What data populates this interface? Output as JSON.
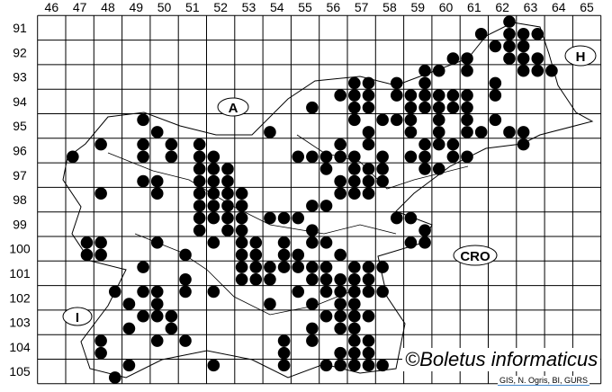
{
  "map": {
    "columns": [
      46,
      47,
      48,
      49,
      50,
      51,
      52,
      53,
      54,
      55,
      56,
      57,
      58,
      59,
      60,
      61,
      62,
      63,
      64,
      65
    ],
    "rows": [
      91,
      92,
      93,
      94,
      95,
      96,
      97,
      98,
      99,
      100,
      101,
      102,
      103,
      104,
      105
    ],
    "country_labels": {
      "austria": "A",
      "hungary": "H",
      "italy": "I",
      "croatia": "CRO"
    },
    "copyright": "©Boletus informaticus",
    "source": "GIS, N. Ogris, BI, GURS",
    "dot_color": "#000000",
    "quadrant_order": "1=NW, 2=NE, 3=SW, 4=SE",
    "records": [
      [
        91,
        62,
        2
      ],
      [
        91,
        61,
        4
      ],
      [
        91,
        62,
        4
      ],
      [
        91,
        63,
        3
      ],
      [
        91,
        63,
        4
      ],
      [
        92,
        62,
        1
      ],
      [
        92,
        62,
        2
      ],
      [
        92,
        63,
        1
      ],
      [
        92,
        60,
        4
      ],
      [
        92,
        61,
        3
      ],
      [
        92,
        62,
        4
      ],
      [
        92,
        63,
        3
      ],
      [
        92,
        63,
        4
      ],
      [
        93,
        59,
        2
      ],
      [
        93,
        60,
        1
      ],
      [
        93,
        61,
        1
      ],
      [
        93,
        63,
        1
      ],
      [
        93,
        63,
        2
      ],
      [
        93,
        64,
        1
      ],
      [
        93,
        57,
        3
      ],
      [
        93,
        57,
        4
      ],
      [
        93,
        58,
        4
      ],
      [
        93,
        59,
        4
      ],
      [
        93,
        62,
        3
      ],
      [
        94,
        56,
        2
      ],
      [
        94,
        57,
        1
      ],
      [
        94,
        57,
        2
      ],
      [
        94,
        58,
        2
      ],
      [
        94,
        59,
        1
      ],
      [
        94,
        59,
        2
      ],
      [
        94,
        60,
        1
      ],
      [
        94,
        60,
        2
      ],
      [
        94,
        61,
        1
      ],
      [
        94,
        62,
        1
      ],
      [
        94,
        55,
        4
      ],
      [
        94,
        57,
        3
      ],
      [
        94,
        57,
        4
      ],
      [
        94,
        59,
        3
      ],
      [
        94,
        59,
        4
      ],
      [
        94,
        60,
        3
      ],
      [
        94,
        60,
        4
      ],
      [
        94,
        61,
        3
      ],
      [
        95,
        49,
        2
      ],
      [
        95,
        57,
        1
      ],
      [
        95,
        58,
        1
      ],
      [
        95,
        58,
        2
      ],
      [
        95,
        59,
        1
      ],
      [
        95,
        60,
        1
      ],
      [
        95,
        61,
        1
      ],
      [
        95,
        62,
        1
      ],
      [
        95,
        50,
        3
      ],
      [
        95,
        54,
        3
      ],
      [
        95,
        57,
        4
      ],
      [
        95,
        59,
        3
      ],
      [
        95,
        60,
        3
      ],
      [
        95,
        61,
        3
      ],
      [
        95,
        61,
        4
      ],
      [
        95,
        62,
        4
      ],
      [
        95,
        63,
        3
      ],
      [
        96,
        48,
        1
      ],
      [
        96,
        49,
        2
      ],
      [
        96,
        50,
        2
      ],
      [
        96,
        51,
        2
      ],
      [
        96,
        56,
        2
      ],
      [
        96,
        57,
        2
      ],
      [
        96,
        59,
        2
      ],
      [
        96,
        60,
        1
      ],
      [
        96,
        60,
        2
      ],
      [
        96,
        63,
        1
      ],
      [
        96,
        47,
        3
      ],
      [
        96,
        49,
        4
      ],
      [
        96,
        50,
        4
      ],
      [
        96,
        51,
        4
      ],
      [
        96,
        52,
        3
      ],
      [
        96,
        55,
        3
      ],
      [
        96,
        55,
        4
      ],
      [
        96,
        56,
        3
      ],
      [
        96,
        56,
        4
      ],
      [
        96,
        57,
        3
      ],
      [
        96,
        58,
        3
      ],
      [
        96,
        59,
        3
      ],
      [
        96,
        59,
        4
      ],
      [
        96,
        60,
        4
      ],
      [
        96,
        61,
        3
      ],
      [
        97,
        51,
        2
      ],
      [
        97,
        52,
        1
      ],
      [
        97,
        52,
        2
      ],
      [
        97,
        56,
        1
      ],
      [
        97,
        57,
        1
      ],
      [
        97,
        57,
        2
      ],
      [
        97,
        58,
        1
      ],
      [
        97,
        59,
        2
      ],
      [
        97,
        60,
        1
      ],
      [
        97,
        49,
        4
      ],
      [
        97,
        50,
        3
      ],
      [
        97,
        51,
        4
      ],
      [
        97,
        52,
        3
      ],
      [
        97,
        52,
        4
      ],
      [
        97,
        56,
        4
      ],
      [
        97,
        57,
        3
      ],
      [
        97,
        57,
        4
      ],
      [
        97,
        58,
        3
      ],
      [
        98,
        48,
        1
      ],
      [
        98,
        50,
        1
      ],
      [
        98,
        51,
        2
      ],
      [
        98,
        52,
        1
      ],
      [
        98,
        52,
        2
      ],
      [
        98,
        53,
        1
      ],
      [
        98,
        56,
        2
      ],
      [
        98,
        57,
        1
      ],
      [
        98,
        57,
        2
      ],
      [
        98,
        51,
        4
      ],
      [
        98,
        52,
        3
      ],
      [
        98,
        52,
        4
      ],
      [
        98,
        53,
        3
      ],
      [
        98,
        55,
        4
      ],
      [
        98,
        56,
        3
      ],
      [
        99,
        51,
        2
      ],
      [
        99,
        52,
        1
      ],
      [
        99,
        52,
        2
      ],
      [
        99,
        53,
        1
      ],
      [
        99,
        54,
        1
      ],
      [
        99,
        54,
        2
      ],
      [
        99,
        55,
        1
      ],
      [
        99,
        58,
        2
      ],
      [
        99,
        59,
        1
      ],
      [
        99,
        51,
        4
      ],
      [
        99,
        52,
        4
      ],
      [
        99,
        53,
        3
      ],
      [
        99,
        55,
        4
      ],
      [
        99,
        59,
        4
      ],
      [
        100,
        47,
        2
      ],
      [
        100,
        48,
        1
      ],
      [
        100,
        50,
        1
      ],
      [
        100,
        52,
        1
      ],
      [
        100,
        53,
        1
      ],
      [
        100,
        53,
        2
      ],
      [
        100,
        54,
        2
      ],
      [
        100,
        55,
        2
      ],
      [
        100,
        56,
        1
      ],
      [
        100,
        59,
        1
      ],
      [
        100,
        59,
        2
      ],
      [
        100,
        47,
        4
      ],
      [
        100,
        48,
        3
      ],
      [
        100,
        51,
        3
      ],
      [
        100,
        53,
        3
      ],
      [
        100,
        53,
        4
      ],
      [
        100,
        54,
        4
      ],
      [
        100,
        55,
        3
      ],
      [
        100,
        56,
        4
      ],
      [
        101,
        49,
        2
      ],
      [
        101,
        53,
        1
      ],
      [
        101,
        53,
        2
      ],
      [
        101,
        54,
        1
      ],
      [
        101,
        54,
        2
      ],
      [
        101,
        55,
        1
      ],
      [
        101,
        55,
        2
      ],
      [
        101,
        56,
        1
      ],
      [
        101,
        57,
        1
      ],
      [
        101,
        57,
        2
      ],
      [
        101,
        58,
        1
      ],
      [
        101,
        51,
        3
      ],
      [
        101,
        53,
        3
      ],
      [
        101,
        53,
        4
      ],
      [
        101,
        54,
        3
      ],
      [
        101,
        55,
        4
      ],
      [
        101,
        56,
        3
      ],
      [
        101,
        56,
        4
      ],
      [
        101,
        57,
        3
      ],
      [
        101,
        57,
        4
      ],
      [
        102,
        48,
        2
      ],
      [
        102,
        49,
        2
      ],
      [
        102,
        50,
        1
      ],
      [
        102,
        51,
        1
      ],
      [
        102,
        52,
        1
      ],
      [
        102,
        55,
        1
      ],
      [
        102,
        56,
        1
      ],
      [
        102,
        56,
        2
      ],
      [
        102,
        57,
        1
      ],
      [
        102,
        57,
        2
      ],
      [
        102,
        58,
        1
      ],
      [
        102,
        49,
        3
      ],
      [
        102,
        50,
        3
      ],
      [
        102,
        54,
        3
      ],
      [
        102,
        55,
        4
      ],
      [
        102,
        56,
        4
      ],
      [
        102,
        57,
        3
      ],
      [
        103,
        49,
        2
      ],
      [
        103,
        50,
        1
      ],
      [
        103,
        50,
        2
      ],
      [
        103,
        56,
        1
      ],
      [
        103,
        56,
        2
      ],
      [
        103,
        57,
        1
      ],
      [
        103,
        57,
        2
      ],
      [
        103,
        49,
        3
      ],
      [
        103,
        50,
        4
      ],
      [
        103,
        55,
        4
      ],
      [
        103,
        56,
        4
      ],
      [
        103,
        57,
        3
      ],
      [
        104,
        48,
        1
      ],
      [
        104,
        50,
        1
      ],
      [
        104,
        51,
        1
      ],
      [
        104,
        54,
        2
      ],
      [
        104,
        55,
        2
      ],
      [
        104,
        57,
        1
      ],
      [
        104,
        57,
        2
      ],
      [
        104,
        48,
        3
      ],
      [
        104,
        54,
        4
      ],
      [
        104,
        56,
        4
      ],
      [
        104,
        57,
        3
      ],
      [
        104,
        57,
        4
      ],
      [
        105,
        49,
        1
      ],
      [
        105,
        52,
        1
      ],
      [
        105,
        54,
        2
      ],
      [
        105,
        56,
        1
      ],
      [
        105,
        56,
        2
      ],
      [
        105,
        57,
        1
      ],
      [
        105,
        57,
        2
      ],
      [
        105,
        58,
        1
      ],
      [
        105,
        48,
        4
      ]
    ]
  }
}
